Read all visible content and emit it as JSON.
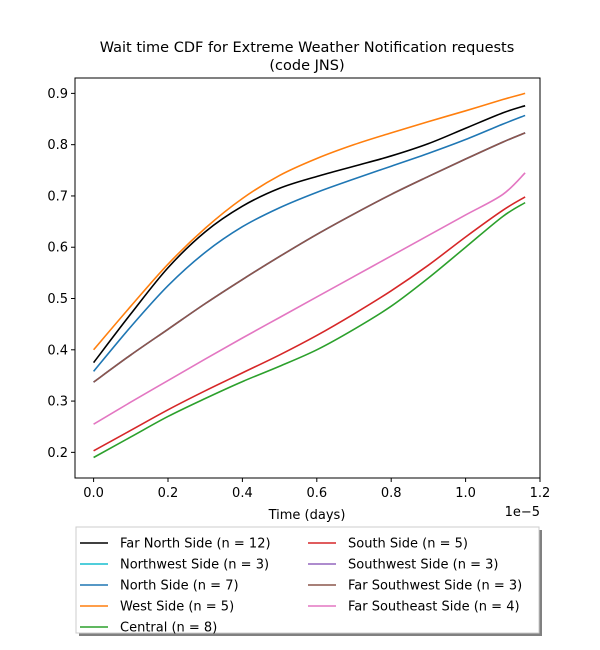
{
  "chart_data": {
    "type": "line",
    "title_line1": "Wait time CDF for Extreme Weather Notification  requests",
    "title_line2": "(code JNS)",
    "xlabel": "Time (days)",
    "x_offset_label": "1e−5",
    "xlim": [
      -0.05,
      1.2
    ],
    "ylim": [
      0.15,
      0.93
    ],
    "x_ticks": [
      0.0,
      0.2,
      0.4,
      0.6,
      0.8,
      1.0,
      1.2
    ],
    "x_tick_labels": [
      "0.0",
      "0.2",
      "0.4",
      "0.6",
      "0.8",
      "1.0",
      "1.2"
    ],
    "y_ticks": [
      0.2,
      0.3,
      0.4,
      0.5,
      0.6,
      0.7,
      0.8,
      0.9
    ],
    "y_tick_labels": [
      "0.2",
      "0.3",
      "0.4",
      "0.5",
      "0.6",
      "0.7",
      "0.8",
      "0.9"
    ],
    "legend_position": "below",
    "x": [
      0.0,
      0.1,
      0.2,
      0.3,
      0.4,
      0.5,
      0.6,
      0.7,
      0.8,
      0.9,
      1.0,
      1.1,
      1.16
    ],
    "series": [
      {
        "name": "Far North Side (n = 12)",
        "color": "#000000",
        "values": [
          0.375,
          0.47,
          0.56,
          0.63,
          0.68,
          0.715,
          0.738,
          0.758,
          0.778,
          0.802,
          0.832,
          0.862,
          0.876
        ]
      },
      {
        "name": "Northwest Side (n = 3)",
        "color": "#17becf",
        "values": [
          0.337,
          0.39,
          0.44,
          0.49,
          0.537,
          0.582,
          0.625,
          0.665,
          0.703,
          0.738,
          0.772,
          0.805,
          0.823
        ]
      },
      {
        "name": "North Side (n = 7)",
        "color": "#1f77b4",
        "values": [
          0.358,
          0.445,
          0.525,
          0.59,
          0.64,
          0.677,
          0.707,
          0.733,
          0.758,
          0.783,
          0.81,
          0.84,
          0.857
        ]
      },
      {
        "name": "West Side (n = 5)",
        "color": "#ff7f0e",
        "values": [
          0.4,
          0.485,
          0.567,
          0.637,
          0.695,
          0.74,
          0.773,
          0.8,
          0.823,
          0.845,
          0.866,
          0.888,
          0.9
        ]
      },
      {
        "name": "Central (n = 8)",
        "color": "#2ca02c",
        "values": [
          0.19,
          0.23,
          0.27,
          0.305,
          0.338,
          0.368,
          0.4,
          0.44,
          0.485,
          0.54,
          0.6,
          0.66,
          0.687
        ]
      },
      {
        "name": "South Side (n = 5)",
        "color": "#d62728",
        "values": [
          0.203,
          0.243,
          0.283,
          0.32,
          0.355,
          0.39,
          0.428,
          0.47,
          0.515,
          0.565,
          0.62,
          0.672,
          0.698
        ]
      },
      {
        "name": "Southwest Side (n = 3)",
        "color": "#9467bd",
        "values": [
          0.337,
          0.39,
          0.44,
          0.49,
          0.537,
          0.582,
          0.625,
          0.665,
          0.703,
          0.738,
          0.772,
          0.805,
          0.823
        ]
      },
      {
        "name": "Far Southwest Side (n = 3)",
        "color": "#8c564b",
        "values": [
          0.337,
          0.39,
          0.44,
          0.49,
          0.537,
          0.582,
          0.625,
          0.665,
          0.703,
          0.738,
          0.772,
          0.805,
          0.823
        ]
      },
      {
        "name": "Far Southeast Side (n = 4)",
        "color": "#e377c2",
        "values": [
          0.255,
          0.298,
          0.34,
          0.382,
          0.423,
          0.463,
          0.503,
          0.543,
          0.583,
          0.623,
          0.663,
          0.703,
          0.745
        ]
      }
    ]
  }
}
